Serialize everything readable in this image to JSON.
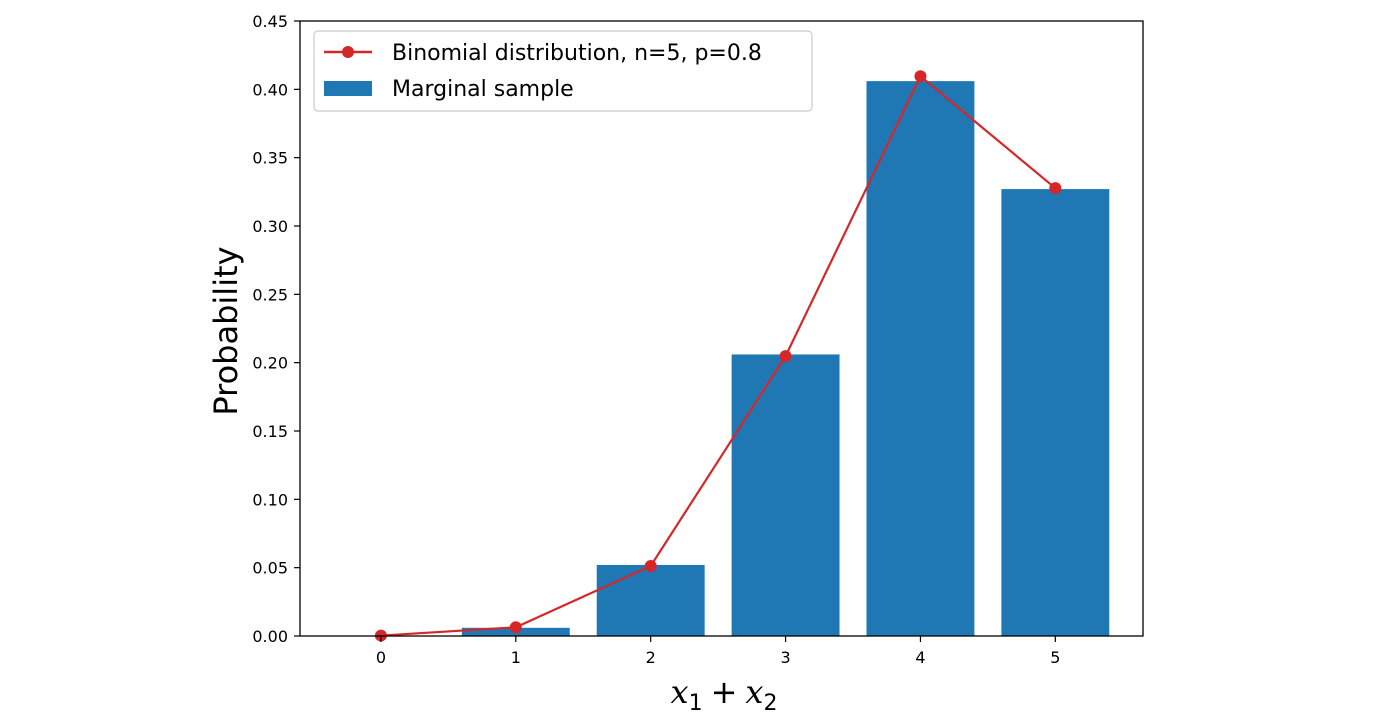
{
  "chart_data": {
    "type": "bar",
    "categories": [
      "0",
      "1",
      "2",
      "3",
      "4",
      "5"
    ],
    "x": [
      0,
      1,
      2,
      3,
      4,
      5
    ],
    "series": [
      {
        "name": "Marginal sample",
        "kind": "bar",
        "color": "#1f77b4",
        "values": [
          0.0,
          0.006,
          0.052,
          0.206,
          0.406,
          0.327
        ]
      },
      {
        "name": "Binomial distribution, n=5, p=0.8",
        "kind": "line",
        "marker": "circle",
        "color": "#d62728",
        "values": [
          0.00032,
          0.0064,
          0.0512,
          0.2048,
          0.4096,
          0.32768
        ]
      }
    ],
    "xlabel_parts": [
      "x",
      "1",
      "+",
      "x",
      "2"
    ],
    "ylabel": "Probability",
    "xlim": [
      -0.6,
      5.65
    ],
    "ylim": [
      0,
      0.45
    ],
    "yticks": [
      0.0,
      0.05,
      0.1,
      0.15,
      0.2,
      0.25,
      0.3,
      0.35,
      0.4,
      0.45
    ],
    "ytick_labels": [
      "0.00",
      "0.05",
      "0.10",
      "0.15",
      "0.20",
      "0.25",
      "0.30",
      "0.35",
      "0.40",
      "0.45"
    ],
    "xtick_labels": [
      "0",
      "1",
      "2",
      "3",
      "4",
      "5"
    ],
    "grid": false,
    "legend_position": "upper-left"
  }
}
